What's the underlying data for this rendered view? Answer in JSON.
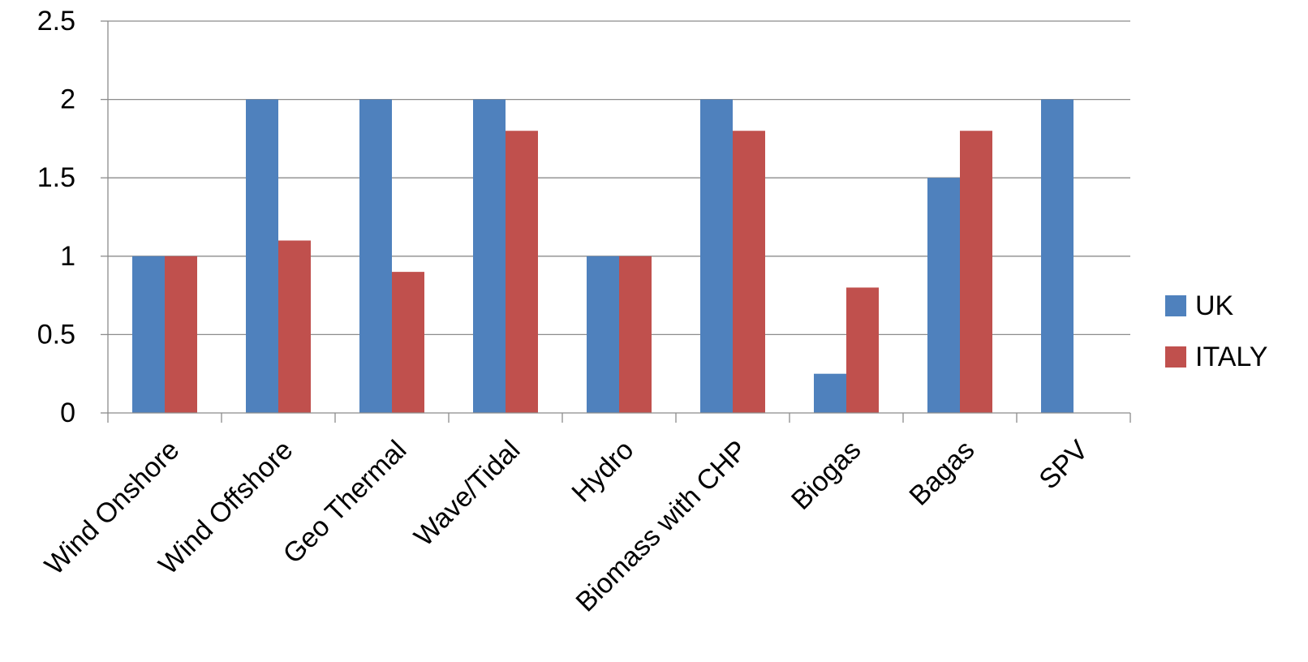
{
  "chart_data": {
    "type": "bar",
    "title": "",
    "xlabel": "",
    "ylabel": "",
    "categories": [
      "Wind Onshore",
      "Wind Offshore",
      "Geo Thermal",
      "Wave/Tidal",
      "Hydro",
      "Biomass with CHP",
      "Biogas",
      "Bagas",
      "SPV"
    ],
    "series": [
      {
        "name": "UK",
        "color": "#4f81bd",
        "values": [
          1,
          2,
          2,
          2,
          1,
          2,
          0.25,
          1.5,
          2
        ]
      },
      {
        "name": "ITALY",
        "color": "#c0504d",
        "values": [
          1,
          1.1,
          0.9,
          1.8,
          1,
          1.8,
          0.8,
          1.8,
          0
        ]
      }
    ],
    "ylim": [
      0,
      2.5
    ],
    "yticks": [
      "0",
      "0.5",
      "1",
      "1.5",
      "2",
      "2.5"
    ],
    "grid": true,
    "legend": "right"
  }
}
